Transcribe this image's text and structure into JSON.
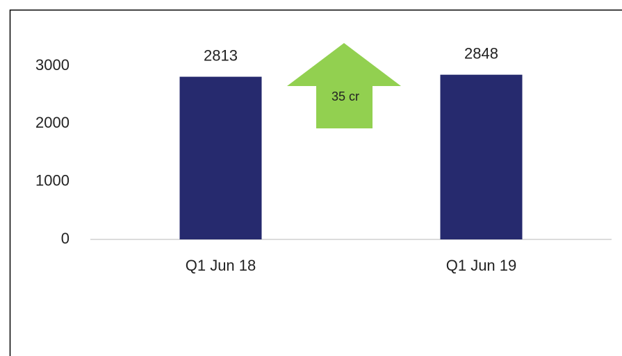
{
  "chart_data": {
    "type": "bar",
    "categories": [
      "Q1 Jun 18",
      "Q1 Jun 19"
    ],
    "values": [
      2813,
      2848
    ],
    "color": "#262a6e",
    "ylim": [
      0,
      3000
    ],
    "yticks": [
      0,
      1000,
      2000,
      3000
    ],
    "grid": false,
    "annotation": {
      "text": "35 cr",
      "color": "#92d050"
    }
  }
}
